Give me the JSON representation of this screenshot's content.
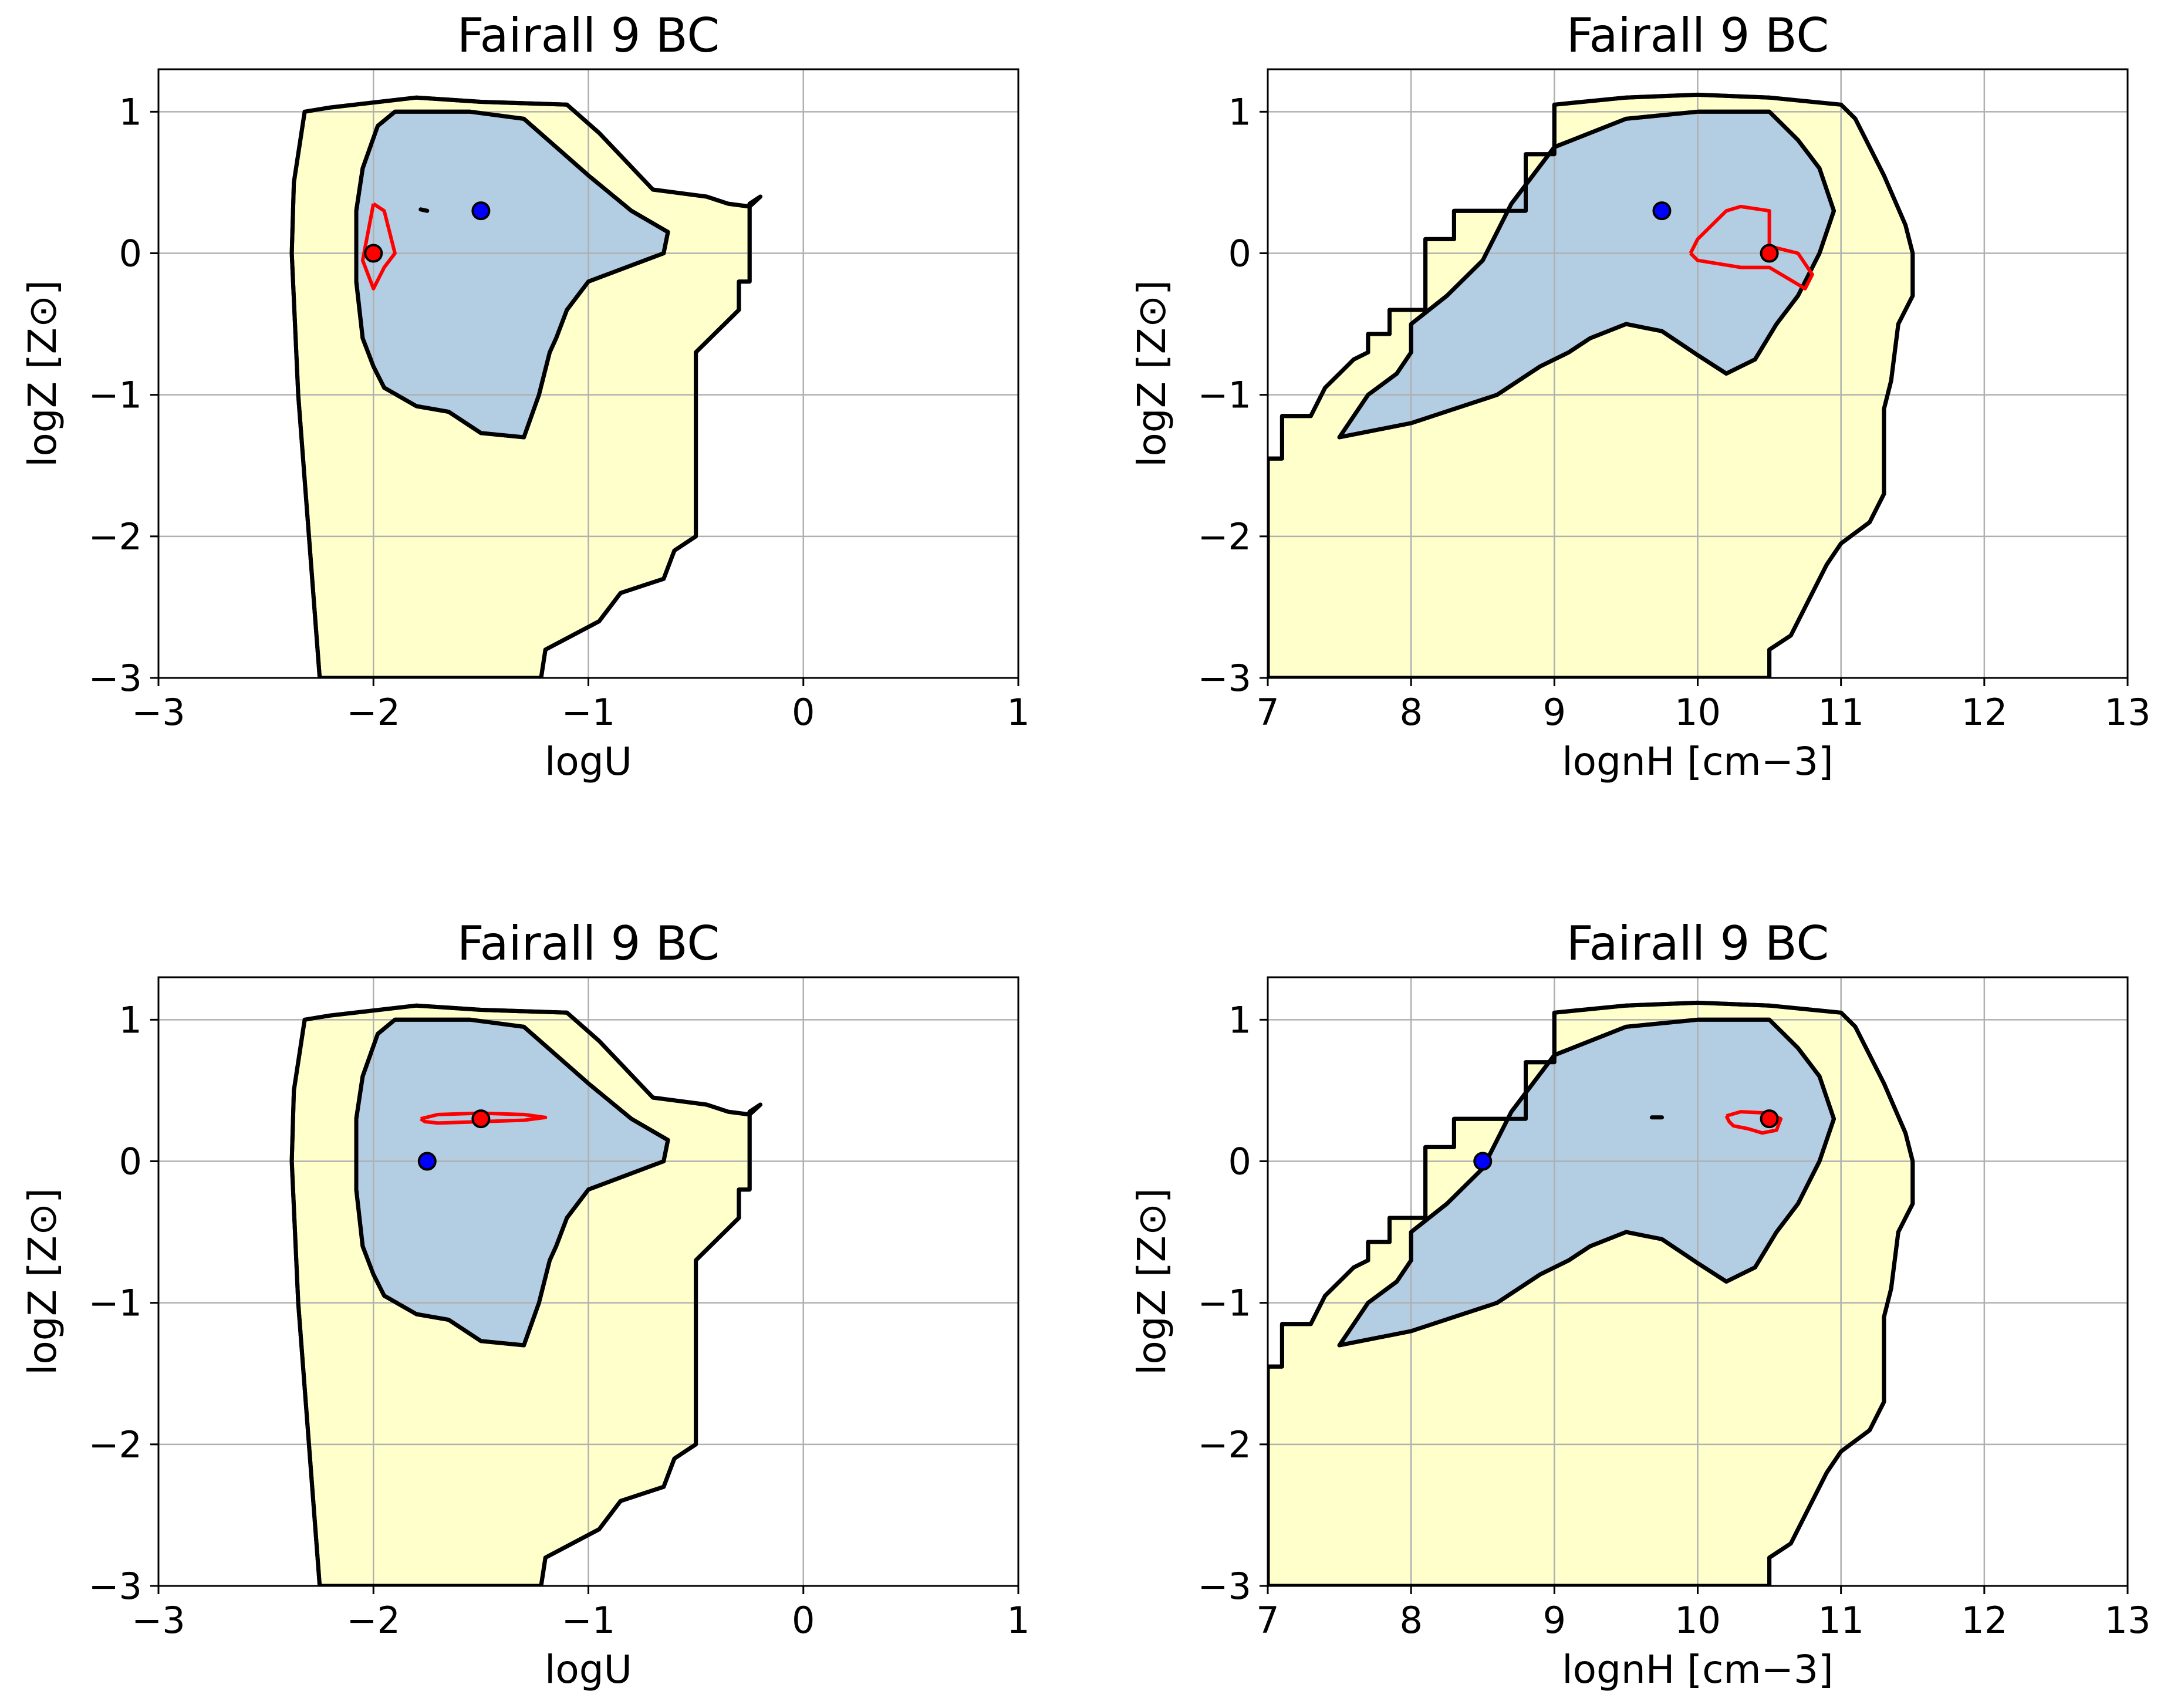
{
  "colors": {
    "outer_region": "#ffffcc",
    "inner_region": "#b3cde3",
    "contour_line": "#000000",
    "red": "#ff0000",
    "blue": "#0000ff"
  },
  "chart_data": [
    {
      "type": "contour",
      "title": "Fairall 9 BC",
      "xlabel": "logU",
      "ylabel": "logZ [Z⊙]",
      "xlim": [
        -3,
        1
      ],
      "ylim": [
        -3,
        1.3
      ],
      "xticks": [
        -3,
        -2,
        -1,
        0,
        1
      ],
      "yticks": [
        -3,
        -2,
        -1,
        0,
        1
      ],
      "xtick_labels": [
        "−3",
        "−2",
        "−1",
        "0",
        "1"
      ],
      "ytick_labels": [
        "−3",
        "−2",
        "−1",
        "0",
        "1"
      ],
      "grid": true,
      "outer_region": [
        [
          -2.25,
          -3
        ],
        [
          -2.3,
          -2
        ],
        [
          -2.35,
          -1
        ],
        [
          -2.38,
          0
        ],
        [
          -2.37,
          0.5
        ],
        [
          -2.32,
          1
        ],
        [
          -2.2,
          1.03
        ],
        [
          -1.8,
          1.1
        ],
        [
          -1.5,
          1.07
        ],
        [
          -1.1,
          1.05
        ],
        [
          -0.95,
          0.85
        ],
        [
          -0.7,
          0.45
        ],
        [
          -0.45,
          0.4
        ],
        [
          -0.35,
          0.35
        ],
        [
          -0.25,
          0.33
        ],
        [
          -0.2,
          0.4
        ],
        [
          -0.25,
          0.35
        ],
        [
          -0.25,
          -0.2
        ],
        [
          -0.3,
          -0.2
        ],
        [
          -0.3,
          -0.4
        ],
        [
          -0.5,
          -0.7
        ],
        [
          -0.5,
          -2.0
        ],
        [
          -0.6,
          -2.1
        ],
        [
          -0.65,
          -2.3
        ],
        [
          -0.75,
          -2.35
        ],
        [
          -0.85,
          -2.4
        ],
        [
          -0.95,
          -2.6
        ],
        [
          -1.1,
          -2.72
        ],
        [
          -1.2,
          -2.8
        ],
        [
          -1.22,
          -3
        ]
      ],
      "inner_region": [
        [
          -2.0,
          -0.8
        ],
        [
          -2.05,
          -0.6
        ],
        [
          -2.08,
          -0.2
        ],
        [
          -2.08,
          0.3
        ],
        [
          -2.05,
          0.6
        ],
        [
          -1.98,
          0.9
        ],
        [
          -1.9,
          1.0
        ],
        [
          -1.55,
          1.0
        ],
        [
          -1.3,
          0.95
        ],
        [
          -1.15,
          0.75
        ],
        [
          -1.0,
          0.55
        ],
        [
          -0.8,
          0.3
        ],
        [
          -0.63,
          0.15
        ],
        [
          -0.65,
          0.0
        ],
        [
          -1.0,
          -0.2
        ],
        [
          -1.1,
          -0.4
        ],
        [
          -1.15,
          -0.6
        ],
        [
          -1.18,
          -0.7
        ],
        [
          -1.23,
          -1.0
        ],
        [
          -1.3,
          -1.3
        ],
        [
          -1.5,
          -1.27
        ],
        [
          -1.65,
          -1.12
        ],
        [
          -1.8,
          -1.08
        ],
        [
          -1.95,
          -0.95
        ]
      ],
      "red_contours": [
        [
          [
            -2.0,
            0.35
          ],
          [
            -1.95,
            0.3
          ],
          [
            -1.9,
            0.0
          ],
          [
            -1.95,
            -0.1
          ],
          [
            -2.0,
            -0.25
          ],
          [
            -2.05,
            -0.05
          ],
          [
            -2.0,
            0.35
          ]
        ]
      ],
      "small_black_marks": [
        [
          [
            -1.78,
            0.31
          ],
          [
            -1.75,
            0.3
          ]
        ]
      ],
      "points": [
        {
          "color": "red",
          "x": -2.0,
          "y": 0.0
        },
        {
          "color": "blue",
          "x": -1.5,
          "y": 0.3
        }
      ]
    },
    {
      "type": "contour",
      "title": "Fairall 9 BC",
      "xlabel": "lognH [cm−3]",
      "ylabel": "logZ [Z⊙]",
      "xlim": [
        7,
        13
      ],
      "ylim": [
        -3,
        1.3
      ],
      "xticks": [
        7,
        8,
        9,
        10,
        11,
        12,
        13
      ],
      "yticks": [
        -3,
        -2,
        -1,
        0,
        1
      ],
      "xtick_labels": [
        "7",
        "8",
        "9",
        "10",
        "11",
        "12",
        "13"
      ],
      "ytick_labels": [
        "−3",
        "−2",
        "−1",
        "0",
        "1"
      ],
      "grid": true,
      "outer_region": [
        [
          7,
          -3
        ],
        [
          7,
          -1.45
        ],
        [
          7.1,
          -1.45
        ],
        [
          7.1,
          -1.15
        ],
        [
          7.3,
          -1.15
        ],
        [
          7.4,
          -0.95
        ],
        [
          7.6,
          -0.75
        ],
        [
          7.7,
          -0.7
        ],
        [
          7.7,
          -0.57
        ],
        [
          7.85,
          -0.57
        ],
        [
          7.85,
          -0.4
        ],
        [
          8.1,
          -0.4
        ],
        [
          8.1,
          0.1
        ],
        [
          8.3,
          0.1
        ],
        [
          8.3,
          0.3
        ],
        [
          8.8,
          0.3
        ],
        [
          8.8,
          0.7
        ],
        [
          9.0,
          0.7
        ],
        [
          9.0,
          1.05
        ],
        [
          9.5,
          1.1
        ],
        [
          10.0,
          1.12
        ],
        [
          10.5,
          1.1
        ],
        [
          10.8,
          1.07
        ],
        [
          11.0,
          1.05
        ],
        [
          11.1,
          0.95
        ],
        [
          11.3,
          0.55
        ],
        [
          11.45,
          0.2
        ],
        [
          11.5,
          0.0
        ],
        [
          11.5,
          -0.3
        ],
        [
          11.4,
          -0.5
        ],
        [
          11.35,
          -0.9
        ],
        [
          11.3,
          -1.1
        ],
        [
          11.3,
          -1.7
        ],
        [
          11.2,
          -1.9
        ],
        [
          11.0,
          -2.05
        ],
        [
          10.9,
          -2.2
        ],
        [
          10.8,
          -2.4
        ],
        [
          10.65,
          -2.7
        ],
        [
          10.5,
          -2.8
        ],
        [
          10.5,
          -3
        ]
      ],
      "inner_region": [
        [
          7.5,
          -1.3
        ],
        [
          7.7,
          -1.0
        ],
        [
          7.9,
          -0.85
        ],
        [
          8.0,
          -0.7
        ],
        [
          8.0,
          -0.5
        ],
        [
          8.25,
          -0.3
        ],
        [
          8.5,
          -0.05
        ],
        [
          8.7,
          0.35
        ],
        [
          9.0,
          0.75
        ],
        [
          9.5,
          0.95
        ],
        [
          10.0,
          1.0
        ],
        [
          10.5,
          1.0
        ],
        [
          10.7,
          0.8
        ],
        [
          10.85,
          0.6
        ],
        [
          10.95,
          0.3
        ],
        [
          10.85,
          0.0
        ],
        [
          10.7,
          -0.3
        ],
        [
          10.55,
          -0.5
        ],
        [
          10.4,
          -0.75
        ],
        [
          10.3,
          -0.8
        ],
        [
          10.2,
          -0.85
        ],
        [
          10.0,
          -0.72
        ],
        [
          9.75,
          -0.55
        ],
        [
          9.5,
          -0.5
        ],
        [
          9.25,
          -0.6
        ],
        [
          9.1,
          -0.7
        ],
        [
          8.9,
          -0.8
        ],
        [
          8.6,
          -1.0
        ],
        [
          8.3,
          -1.1
        ],
        [
          8.0,
          -1.2
        ],
        [
          7.5,
          -1.3
        ]
      ],
      "red_contours": [
        [
          [
            9.95,
            0.0
          ],
          [
            10.0,
            0.1
          ],
          [
            10.2,
            0.3
          ],
          [
            10.3,
            0.33
          ],
          [
            10.5,
            0.3
          ],
          [
            10.5,
            0.05
          ],
          [
            10.7,
            0.0
          ],
          [
            10.8,
            -0.15
          ],
          [
            10.75,
            -0.25
          ],
          [
            10.5,
            -0.1
          ],
          [
            10.3,
            -0.1
          ],
          [
            10.0,
            -0.05
          ],
          [
            9.95,
            0.0
          ]
        ]
      ],
      "points": [
        {
          "color": "red",
          "x": 10.5,
          "y": 0.0
        },
        {
          "color": "blue",
          "x": 9.75,
          "y": 0.3
        }
      ]
    },
    {
      "type": "contour",
      "title": "Fairall 9 BC",
      "xlabel": "logU",
      "ylabel": "logZ [Z⊙]",
      "xlim": [
        -3,
        1
      ],
      "ylim": [
        -3,
        1.3
      ],
      "xticks": [
        -3,
        -2,
        -1,
        0,
        1
      ],
      "yticks": [
        -3,
        -2,
        -1,
        0,
        1
      ],
      "xtick_labels": [
        "−3",
        "−2",
        "−1",
        "0",
        "1"
      ],
      "ytick_labels": [
        "−3",
        "−2",
        "−1",
        "0",
        "1"
      ],
      "grid": true,
      "outer_region": [
        [
          -2.25,
          -3
        ],
        [
          -2.3,
          -2
        ],
        [
          -2.35,
          -1
        ],
        [
          -2.38,
          0
        ],
        [
          -2.37,
          0.5
        ],
        [
          -2.32,
          1
        ],
        [
          -2.2,
          1.03
        ],
        [
          -1.8,
          1.1
        ],
        [
          -1.5,
          1.07
        ],
        [
          -1.1,
          1.05
        ],
        [
          -0.95,
          0.85
        ],
        [
          -0.7,
          0.45
        ],
        [
          -0.45,
          0.4
        ],
        [
          -0.35,
          0.35
        ],
        [
          -0.25,
          0.33
        ],
        [
          -0.2,
          0.4
        ],
        [
          -0.25,
          0.35
        ],
        [
          -0.25,
          -0.2
        ],
        [
          -0.3,
          -0.2
        ],
        [
          -0.3,
          -0.4
        ],
        [
          -0.5,
          -0.7
        ],
        [
          -0.5,
          -2.0
        ],
        [
          -0.6,
          -2.1
        ],
        [
          -0.65,
          -2.3
        ],
        [
          -0.75,
          -2.35
        ],
        [
          -0.85,
          -2.4
        ],
        [
          -0.95,
          -2.6
        ],
        [
          -1.1,
          -2.72
        ],
        [
          -1.2,
          -2.8
        ],
        [
          -1.22,
          -3
        ]
      ],
      "inner_region": [
        [
          -2.0,
          -0.8
        ],
        [
          -2.05,
          -0.6
        ],
        [
          -2.08,
          -0.2
        ],
        [
          -2.08,
          0.3
        ],
        [
          -2.05,
          0.6
        ],
        [
          -1.98,
          0.9
        ],
        [
          -1.9,
          1.0
        ],
        [
          -1.55,
          1.0
        ],
        [
          -1.3,
          0.95
        ],
        [
          -1.15,
          0.75
        ],
        [
          -1.0,
          0.55
        ],
        [
          -0.8,
          0.3
        ],
        [
          -0.63,
          0.15
        ],
        [
          -0.65,
          0.0
        ],
        [
          -1.0,
          -0.2
        ],
        [
          -1.1,
          -0.4
        ],
        [
          -1.15,
          -0.6
        ],
        [
          -1.18,
          -0.7
        ],
        [
          -1.23,
          -1.0
        ],
        [
          -1.3,
          -1.3
        ],
        [
          -1.5,
          -1.27
        ],
        [
          -1.65,
          -1.12
        ],
        [
          -1.8,
          -1.08
        ],
        [
          -1.95,
          -0.95
        ]
      ],
      "red_contours": [
        [
          [
            -1.78,
            0.3
          ],
          [
            -1.7,
            0.33
          ],
          [
            -1.5,
            0.34
          ],
          [
            -1.3,
            0.33
          ],
          [
            -1.2,
            0.31
          ],
          [
            -1.3,
            0.29
          ],
          [
            -1.5,
            0.28
          ],
          [
            -1.7,
            0.27
          ],
          [
            -1.76,
            0.28
          ],
          [
            -1.78,
            0.3
          ]
        ]
      ],
      "points": [
        {
          "color": "red",
          "x": -1.5,
          "y": 0.3
        },
        {
          "color": "blue",
          "x": -1.75,
          "y": 0.0
        }
      ]
    },
    {
      "type": "contour",
      "title": "Fairall 9 BC",
      "xlabel": "lognH [cm−3]",
      "ylabel": "logZ [Z⊙]",
      "xlim": [
        7,
        13
      ],
      "ylim": [
        -3,
        1.3
      ],
      "xticks": [
        7,
        8,
        9,
        10,
        11,
        12,
        13
      ],
      "yticks": [
        -3,
        -2,
        -1,
        0,
        1
      ],
      "xtick_labels": [
        "7",
        "8",
        "9",
        "10",
        "11",
        "12",
        "13"
      ],
      "ytick_labels": [
        "−3",
        "−2",
        "−1",
        "0",
        "1"
      ],
      "grid": true,
      "outer_region": [
        [
          7,
          -3
        ],
        [
          7,
          -1.45
        ],
        [
          7.1,
          -1.45
        ],
        [
          7.1,
          -1.15
        ],
        [
          7.3,
          -1.15
        ],
        [
          7.4,
          -0.95
        ],
        [
          7.6,
          -0.75
        ],
        [
          7.7,
          -0.7
        ],
        [
          7.7,
          -0.57
        ],
        [
          7.85,
          -0.57
        ],
        [
          7.85,
          -0.4
        ],
        [
          8.1,
          -0.4
        ],
        [
          8.1,
          0.1
        ],
        [
          8.3,
          0.1
        ],
        [
          8.3,
          0.3
        ],
        [
          8.8,
          0.3
        ],
        [
          8.8,
          0.7
        ],
        [
          9.0,
          0.7
        ],
        [
          9.0,
          1.05
        ],
        [
          9.5,
          1.1
        ],
        [
          10.0,
          1.12
        ],
        [
          10.5,
          1.1
        ],
        [
          10.8,
          1.07
        ],
        [
          11.0,
          1.05
        ],
        [
          11.1,
          0.95
        ],
        [
          11.3,
          0.55
        ],
        [
          11.45,
          0.2
        ],
        [
          11.5,
          0.0
        ],
        [
          11.5,
          -0.3
        ],
        [
          11.4,
          -0.5
        ],
        [
          11.35,
          -0.9
        ],
        [
          11.3,
          -1.1
        ],
        [
          11.3,
          -1.7
        ],
        [
          11.2,
          -1.9
        ],
        [
          11.0,
          -2.05
        ],
        [
          10.9,
          -2.2
        ],
        [
          10.8,
          -2.4
        ],
        [
          10.65,
          -2.7
        ],
        [
          10.5,
          -2.8
        ],
        [
          10.5,
          -3
        ]
      ],
      "inner_region": [
        [
          7.5,
          -1.3
        ],
        [
          7.7,
          -1.0
        ],
        [
          7.9,
          -0.85
        ],
        [
          8.0,
          -0.7
        ],
        [
          8.0,
          -0.5
        ],
        [
          8.25,
          -0.3
        ],
        [
          8.5,
          -0.05
        ],
        [
          8.7,
          0.35
        ],
        [
          9.0,
          0.75
        ],
        [
          9.5,
          0.95
        ],
        [
          10.0,
          1.0
        ],
        [
          10.5,
          1.0
        ],
        [
          10.7,
          0.8
        ],
        [
          10.85,
          0.6
        ],
        [
          10.95,
          0.3
        ],
        [
          10.85,
          0.0
        ],
        [
          10.7,
          -0.3
        ],
        [
          10.55,
          -0.5
        ],
        [
          10.4,
          -0.75
        ],
        [
          10.3,
          -0.8
        ],
        [
          10.2,
          -0.85
        ],
        [
          10.0,
          -0.72
        ],
        [
          9.75,
          -0.55
        ],
        [
          9.5,
          -0.5
        ],
        [
          9.25,
          -0.6
        ],
        [
          9.1,
          -0.7
        ],
        [
          8.9,
          -0.8
        ],
        [
          8.6,
          -1.0
        ],
        [
          8.3,
          -1.1
        ],
        [
          8.0,
          -1.2
        ],
        [
          7.5,
          -1.3
        ]
      ],
      "red_contours": [
        [
          [
            10.2,
            0.32
          ],
          [
            10.3,
            0.35
          ],
          [
            10.5,
            0.34
          ],
          [
            10.58,
            0.3
          ],
          [
            10.55,
            0.22
          ],
          [
            10.45,
            0.2
          ],
          [
            10.35,
            0.23
          ],
          [
            10.25,
            0.25
          ],
          [
            10.22,
            0.28
          ],
          [
            10.2,
            0.32
          ]
        ]
      ],
      "small_black_marks": [
        [
          [
            9.68,
            0.31
          ],
          [
            9.75,
            0.31
          ]
        ]
      ],
      "points": [
        {
          "color": "red",
          "x": 10.5,
          "y": 0.3
        },
        {
          "color": "blue",
          "x": 8.5,
          "y": 0.0
        }
      ]
    }
  ]
}
